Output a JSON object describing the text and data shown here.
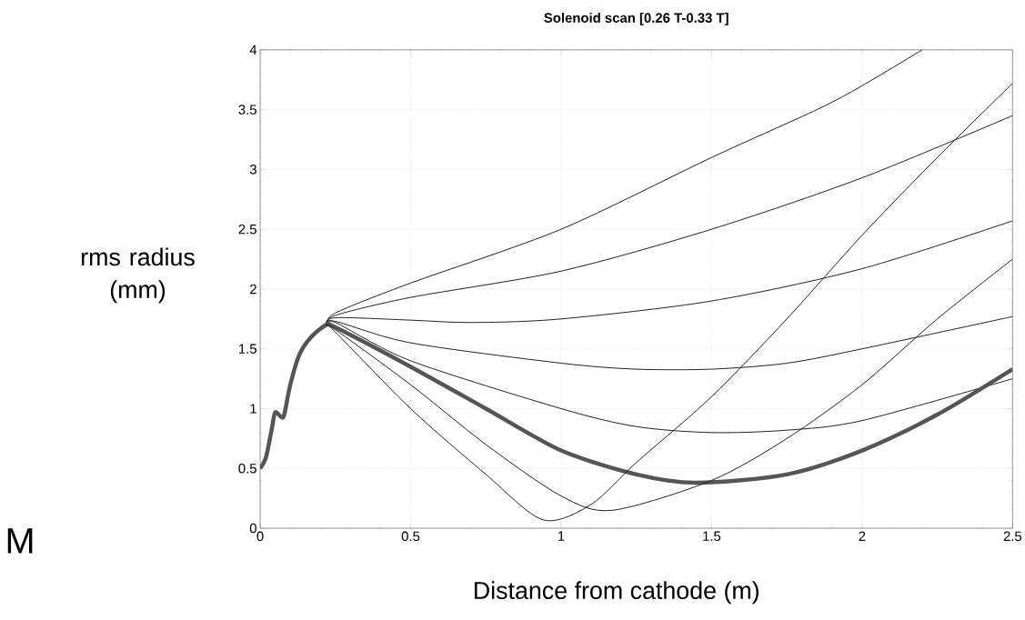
{
  "chart_data": {
    "type": "line",
    "title": "Solenoid scan [0.26 T-0.33 T]",
    "xlabel": "Distance from cathode (m)",
    "ylabel": "rms radius (mm)",
    "annotations": [
      "M"
    ],
    "xlim": [
      0,
      2.5
    ],
    "ylim": [
      0,
      4
    ],
    "xticks": [
      0,
      0.5,
      1,
      1.5,
      2,
      2.5
    ],
    "yticks": [
      0,
      0.5,
      1,
      1.5,
      2,
      2.5,
      3,
      3.5,
      4
    ],
    "grid": true,
    "series": [
      {
        "color": "#222222",
        "x": [
          0,
          0.02,
          0.04,
          0.05,
          0.07,
          0.08,
          0.1,
          0.13,
          0.17,
          0.22,
          0.25,
          0.5,
          1,
          1.5,
          1.85,
          2.0,
          2.2
        ],
        "values": [
          0.5,
          0.6,
          0.85,
          0.97,
          0.93,
          0.95,
          1.2,
          1.45,
          1.6,
          1.7,
          1.8,
          2.05,
          2.5,
          3.1,
          3.5,
          3.7,
          4.0
        ]
      },
      {
        "color": "#222222",
        "x": [
          0.22,
          0.25,
          0.5,
          1,
          1.5,
          2,
          2.5
        ],
        "values": [
          1.7,
          1.78,
          1.93,
          2.15,
          2.5,
          2.93,
          3.45
        ]
      },
      {
        "color": "#222222",
        "x": [
          0.22,
          0.25,
          0.5,
          0.7,
          1,
          1.5,
          2,
          2.5
        ],
        "values": [
          1.7,
          1.76,
          1.74,
          1.72,
          1.75,
          1.9,
          2.17,
          2.57
        ]
      },
      {
        "color": "#222222",
        "x": [
          0.22,
          0.25,
          0.5,
          1,
          1.25,
          1.5,
          1.75,
          2,
          2.5
        ],
        "values": [
          1.7,
          1.73,
          1.55,
          1.38,
          1.33,
          1.33,
          1.38,
          1.5,
          1.77
        ]
      },
      {
        "color": "#222222",
        "x": [
          0.22,
          0.25,
          0.5,
          1,
          1.25,
          1.5,
          1.75,
          2,
          2.5
        ],
        "values": [
          1.7,
          1.72,
          1.4,
          1.0,
          0.85,
          0.8,
          0.82,
          0.9,
          1.25
        ]
      },
      {
        "color": "#555555",
        "x": [
          0,
          0.02,
          0.04,
          0.05,
          0.07,
          0.08,
          0.1,
          0.13,
          0.17,
          0.22,
          0.25,
          0.5,
          0.75,
          1,
          1.25,
          1.45,
          1.75,
          2,
          2.25,
          2.5
        ],
        "values": [
          0.5,
          0.6,
          0.85,
          0.97,
          0.93,
          0.95,
          1.2,
          1.45,
          1.6,
          1.7,
          1.68,
          1.35,
          1.0,
          0.65,
          0.45,
          0.38,
          0.45,
          0.65,
          0.95,
          1.33
        ]
      },
      {
        "color": "#222222",
        "x": [
          0.22,
          0.25,
          0.5,
          0.75,
          1,
          1.17,
          1.5,
          1.75,
          2,
          2.25,
          2.5
        ],
        "values": [
          1.7,
          1.66,
          1.2,
          0.7,
          0.27,
          0.15,
          0.4,
          0.75,
          1.2,
          1.75,
          2.25
        ]
      },
      {
        "color": "#222222",
        "x": [
          0.22,
          0.25,
          0.5,
          0.75,
          0.94,
          1.1,
          1.25,
          1.5,
          1.75,
          2,
          2.25,
          2.5
        ],
        "values": [
          1.7,
          1.64,
          1.0,
          0.45,
          0.07,
          0.2,
          0.55,
          1.1,
          1.75,
          2.45,
          3.1,
          3.72
        ]
      }
    ]
  }
}
